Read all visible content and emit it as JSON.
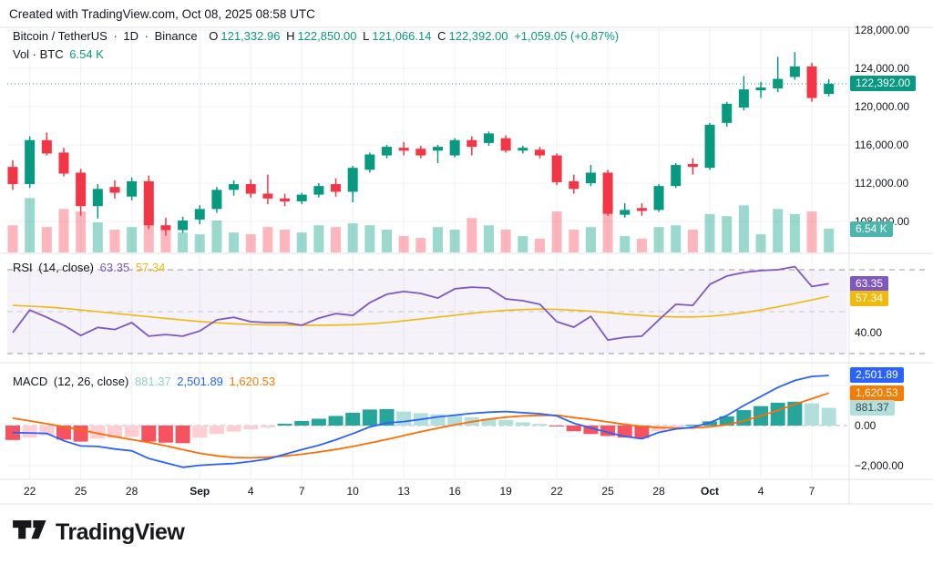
{
  "attribution": "Created with TradingView.com, Oct 08, 2025 08:58 UTC",
  "logo": {
    "text": "TradingView"
  },
  "main_legend": {
    "symbol": "Bitcoin / TetherUS",
    "sep1": "·",
    "interval": "1D",
    "sep2": "·",
    "exchange": "Binance",
    "o_label": "O",
    "o": "121,332.96",
    "h_label": "H",
    "h": "122,850.00",
    "l_label": "L",
    "l": "121,066.14",
    "c_label": "C",
    "c": "122,392.00",
    "change": "+1,059.05 (+0.87%)",
    "vol_label": "Vol · BTC",
    "vol_value": "6.54 K"
  },
  "rsi_legend": {
    "title": "RSI",
    "params": "(14, close)",
    "value": "63.35",
    "ma_value": "57.34"
  },
  "macd_legend": {
    "title": "MACD",
    "params": "(12, 26, close)",
    "hist_value": "881.37",
    "macd_value": "2,501.89",
    "signal_value": "1,620.53"
  },
  "price_axis": {
    "labels": [
      {
        "text": "128,000.00",
        "value": 128000
      },
      {
        "text": "124,000.00",
        "value": 124000
      },
      {
        "text": "120,000.00",
        "value": 120000
      },
      {
        "text": "116,000.00",
        "value": 116000
      },
      {
        "text": "112,000.00",
        "value": 112000
      },
      {
        "text": "108,000.00",
        "value": 108000
      }
    ],
    "price_badge": {
      "text": "122,392.00",
      "value": 122392
    },
    "volume_badge": {
      "text": "6.54 K"
    }
  },
  "rsi_axis": {
    "badges": [
      {
        "text": "63.35",
        "value": 63.35,
        "kind": "rsi"
      },
      {
        "text": "57.34",
        "value": 57.34,
        "kind": "rsi-ma"
      }
    ],
    "labels": [
      {
        "text": "40.00",
        "value": 40
      }
    ]
  },
  "macd_axis": {
    "badges": [
      {
        "text": "2,501.89",
        "value": 2501.89,
        "kind": "macd"
      },
      {
        "text": "1,620.53",
        "value": 1620.53,
        "kind": "signal"
      },
      {
        "text": "881.37",
        "value": 881.37,
        "kind": "hist"
      }
    ],
    "labels": [
      {
        "text": "0.00",
        "value": 0
      },
      {
        "text": "−2,000.00",
        "value": -2000
      }
    ]
  },
  "time_axis": [
    {
      "i": 1,
      "label": "22",
      "bold": false
    },
    {
      "i": 4,
      "label": "25",
      "bold": false
    },
    {
      "i": 7,
      "label": "28",
      "bold": false
    },
    {
      "i": 11,
      "label": "Sep",
      "bold": true
    },
    {
      "i": 14,
      "label": "4",
      "bold": false
    },
    {
      "i": 17,
      "label": "7",
      "bold": false
    },
    {
      "i": 20,
      "label": "10",
      "bold": false
    },
    {
      "i": 23,
      "label": "13",
      "bold": false
    },
    {
      "i": 26,
      "label": "16",
      "bold": false
    },
    {
      "i": 29,
      "label": "19",
      "bold": false
    },
    {
      "i": 32,
      "label": "22",
      "bold": false
    },
    {
      "i": 35,
      "label": "25",
      "bold": false
    },
    {
      "i": 38,
      "label": "28",
      "bold": false
    },
    {
      "i": 41,
      "label": "Oct",
      "bold": true
    },
    {
      "i": 44,
      "label": "4",
      "bold": false
    },
    {
      "i": 47,
      "label": "7",
      "bold": false
    }
  ],
  "colors": {
    "up": "#089981",
    "down": "#f23645",
    "vol_up": "rgba(34,171,148,0.45)",
    "vol_down": "rgba(247,82,95,0.42)",
    "rsi_line": "#7e57c2",
    "rsi_ma": "#f0b90b",
    "rsi_band": "rgba(126,87,194,0.08)",
    "macd_line": "#2962ff",
    "signal_line": "#ff6d00",
    "hist_up_grow": "#26a69a",
    "hist_up_fall": "#b2dfdb",
    "hist_dn_fall": "#f7525f",
    "hist_dn_grow": "#ffcdd2",
    "grid": "#eef0f6",
    "separator": "#e0e3eb",
    "dashed": "#9598a1",
    "price_line": "#089981",
    "badge_price_bg": "#089981",
    "badge_vol_bg": "#4db6ac",
    "badge_rsi_bg": "#7e57c2",
    "badge_rsi_ma_bg": "#f0b90b",
    "badge_macd_bg": "#2962ff",
    "badge_signal_bg": "#f57c00",
    "badge_hist_bg": "#b2dfdb",
    "badge_hist_text": "#40474e"
  },
  "chart_data": [
    {
      "type": "candlestick",
      "title": "Bitcoin / TetherUS 1D Binance",
      "ylabel": "Price (USDT)",
      "ylim": [
        104200,
        128600
      ],
      "grid": true,
      "last_price": 122392,
      "columns": [
        "date",
        "open",
        "high",
        "low",
        "close",
        "volume_k"
      ],
      "candles": [
        [
          "Aug 21",
          113700,
          114400,
          111300,
          111900,
          7.5
        ],
        [
          "Aug 22",
          111900,
          116900,
          111500,
          116500,
          15
        ],
        [
          "Aug 23",
          116500,
          117300,
          114900,
          115100,
          7
        ],
        [
          "Aug 24",
          115200,
          115700,
          112700,
          113000,
          12
        ],
        [
          "Aug 25",
          113100,
          113500,
          108600,
          109600,
          11.3
        ],
        [
          "Aug 26",
          109600,
          111900,
          108300,
          111400,
          8.3
        ],
        [
          "Aug 27",
          111600,
          112300,
          110400,
          111000,
          6.3
        ],
        [
          "Aug 28",
          110600,
          112600,
          110200,
          112200,
          7
        ],
        [
          "Aug 29",
          112200,
          112800,
          107200,
          107600,
          11.8
        ],
        [
          "Aug 30",
          107600,
          108400,
          106500,
          107100,
          6.3
        ],
        [
          "Aug 31",
          107100,
          108500,
          106800,
          108100,
          5.5
        ],
        [
          "Sep 1",
          108200,
          109700,
          107700,
          109300,
          5
        ],
        [
          "Sep 2",
          109300,
          111600,
          108900,
          111300,
          8.8
        ],
        [
          "Sep 3",
          111300,
          112300,
          110700,
          111900,
          5.5
        ],
        [
          "Sep 4",
          111900,
          112400,
          110500,
          110900,
          5
        ],
        [
          "Sep 5",
          110900,
          112900,
          109800,
          110400,
          7
        ],
        [
          "Sep 6",
          110400,
          110900,
          109600,
          110100,
          6.3
        ],
        [
          "Sep 7",
          110100,
          111000,
          109800,
          110800,
          5.5
        ],
        [
          "Sep 8",
          110800,
          112000,
          110500,
          111700,
          7.5
        ],
        [
          "Sep 9",
          111900,
          112500,
          110600,
          111100,
          7
        ],
        [
          "Sep 10",
          111100,
          113800,
          110000,
          113600,
          8
        ],
        [
          "Sep 11",
          113400,
          115200,
          113100,
          115000,
          7.5
        ],
        [
          "Sep 12",
          114900,
          116000,
          114600,
          115800,
          6.3
        ],
        [
          "Sep 13",
          115700,
          116300,
          114900,
          115400,
          4.5
        ],
        [
          "Sep 14",
          115600,
          115900,
          114600,
          114900,
          4
        ],
        [
          "Sep 15",
          115400,
          116000,
          114100,
          115800,
          7
        ],
        [
          "Sep 16",
          114900,
          116700,
          114700,
          116500,
          6.3
        ],
        [
          "Sep 17",
          116500,
          116900,
          114900,
          115800,
          9.5
        ],
        [
          "Sep 18",
          116200,
          117400,
          115900,
          117200,
          7.5
        ],
        [
          "Sep 19",
          116700,
          117000,
          115200,
          115400,
          6.3
        ],
        [
          "Sep 20",
          115400,
          115900,
          115100,
          115700,
          4.5
        ],
        [
          "Sep 21",
          115500,
          115800,
          114600,
          114900,
          3.8
        ],
        [
          "Sep 22",
          114900,
          115100,
          111800,
          112100,
          11.3
        ],
        [
          "Sep 23",
          112200,
          112900,
          110900,
          111400,
          6.3
        ],
        [
          "Sep 24",
          112000,
          113900,
          111700,
          113100,
          7
        ],
        [
          "Sep 25",
          113100,
          113400,
          108600,
          108800,
          12.6
        ],
        [
          "Sep 26",
          108700,
          109900,
          108400,
          109200,
          4.5
        ],
        [
          "Sep 27",
          109400,
          109900,
          108600,
          109100,
          3.8
        ],
        [
          "Sep 28",
          109200,
          111900,
          109000,
          111700,
          7
        ],
        [
          "Sep 29",
          111700,
          114100,
          111500,
          113900,
          7.5
        ],
        [
          "Sep 30",
          114000,
          114600,
          112900,
          113700,
          6.3
        ],
        [
          "Oct 1",
          113600,
          118300,
          113400,
          118100,
          10.6
        ],
        [
          "Oct 2",
          118300,
          120500,
          117900,
          120300,
          10
        ],
        [
          "Oct 3",
          119900,
          123200,
          119600,
          121800,
          13
        ],
        [
          "Oct 4",
          121700,
          122600,
          120900,
          122000,
          5
        ],
        [
          "Oct 5",
          121900,
          125200,
          121500,
          122900,
          12
        ],
        [
          "Oct 6",
          123100,
          125700,
          122800,
          124200,
          10.6
        ],
        [
          "Oct 7",
          124200,
          124600,
          120500,
          120900,
          11.3
        ],
        [
          "Oct 8",
          121332.96,
          122850,
          121066.14,
          122392,
          6.54
        ]
      ]
    },
    {
      "type": "line",
      "title": "RSI (14, close)",
      "ylim": [
        25,
        78
      ],
      "levels": {
        "upper": 70,
        "middle": 50,
        "lower": 30
      },
      "series": [
        {
          "name": "RSI",
          "values": [
            40.0,
            50.8,
            47.3,
            43.5,
            38.6,
            42.5,
            41.5,
            44.8,
            38.3,
            39.1,
            38.3,
            40.8,
            46.1,
            47.3,
            45.2,
            44.8,
            44.8,
            43.5,
            46.9,
            49.1,
            48.2,
            54.3,
            58.3,
            59.6,
            58.7,
            56.5,
            60.9,
            61.7,
            61.3,
            56.1,
            55.2,
            53.5,
            45.2,
            42.6,
            47.8,
            36.5,
            37.8,
            38.3,
            46.1,
            53.5,
            53.0,
            63.0,
            67.0,
            68.7,
            69.6,
            70.0,
            71.5,
            62.0,
            63.35
          ]
        },
        {
          "name": "RSI-based MA",
          "values": [
            53.0,
            52.6,
            52.2,
            51.6,
            50.8,
            50.0,
            49.2,
            48.4,
            47.6,
            46.8,
            46.0,
            45.3,
            44.7,
            44.2,
            43.9,
            43.7,
            43.6,
            43.5,
            43.5,
            43.6,
            43.8,
            44.2,
            44.8,
            45.6,
            46.5,
            47.4,
            48.3,
            49.2,
            50.0,
            50.6,
            51.0,
            51.2,
            51.1,
            50.7,
            50.2,
            49.5,
            48.8,
            48.2,
            47.7,
            47.5,
            47.5,
            47.8,
            48.5,
            49.5,
            50.8,
            52.3,
            53.9,
            55.6,
            57.34
          ]
        }
      ]
    },
    {
      "type": "bar",
      "title": "MACD (12, 26, close)",
      "ylim": [
        -2600,
        3100
      ],
      "series": [
        {
          "name": "Histogram",
          "values": [
            -720,
            -600,
            -480,
            -700,
            -800,
            -650,
            -620,
            -560,
            -800,
            -850,
            -880,
            -600,
            -420,
            -300,
            -180,
            -90,
            90,
            230,
            340,
            480,
            640,
            800,
            820,
            700,
            620,
            560,
            480,
            420,
            350,
            280,
            160,
            80,
            -40,
            -280,
            -420,
            -520,
            -600,
            -620,
            -280,
            -130,
            40,
            210,
            460,
            770,
            970,
            1140,
            1190,
            1110,
            881.37
          ]
        },
        {
          "name": "MACD",
          "values": [
            -350,
            -370,
            -390,
            -760,
            -1020,
            -1040,
            -1170,
            -1260,
            -1640,
            -1860,
            -2080,
            -1980,
            -1930,
            -1890,
            -1790,
            -1670,
            -1430,
            -1200,
            -980,
            -710,
            -400,
            -70,
            130,
            200,
            310,
            430,
            520,
            610,
            670,
            700,
            640,
            590,
            480,
            120,
            -120,
            -340,
            -540,
            -660,
            -340,
            -170,
            -80,
            150,
            500,
            1000,
            1450,
            1900,
            2250,
            2450,
            2501.89
          ]
        },
        {
          "name": "Signal",
          "values": [
            370,
            230,
            90,
            -60,
            -220,
            -390,
            -550,
            -700,
            -840,
            -1010,
            -1200,
            -1380,
            -1510,
            -1590,
            -1610,
            -1580,
            -1520,
            -1430,
            -1320,
            -1190,
            -1040,
            -870,
            -690,
            -500,
            -310,
            -130,
            40,
            190,
            320,
            420,
            480,
            510,
            520,
            400,
            300,
            180,
            60,
            -40,
            -100,
            -130,
            -120,
            -60,
            40,
            230,
            480,
            760,
            1060,
            1340,
            1620.53
          ]
        }
      ]
    }
  ]
}
